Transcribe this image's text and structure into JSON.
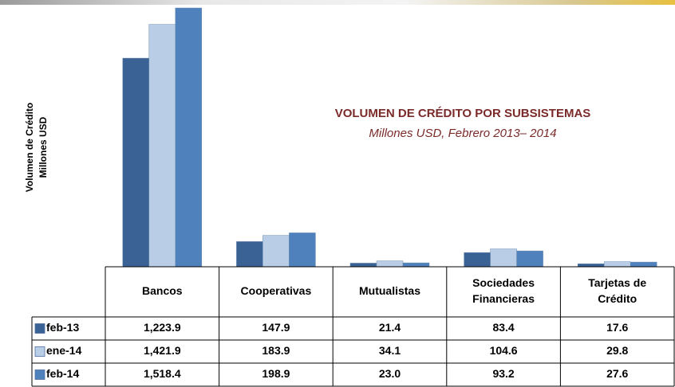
{
  "chart_data": {
    "type": "bar",
    "title": "VOLUMEN DE CRÉDITO POR SUBSISTEMAS",
    "subtitle": "Millones USD, Febrero 2013– 2014",
    "y_label": [
      "Volumen de Crédito",
      "Millones USD"
    ],
    "categories": [
      "Bancos",
      "Cooperativas",
      "Mutualistas",
      [
        "Sociedades",
        "Financieras"
      ],
      [
        "Tarjetas de",
        "Crédito"
      ]
    ],
    "series": [
      {
        "name": "feb-13",
        "color": "#3a6295",
        "values": [
          1223.9,
          147.9,
          21.4,
          83.4,
          17.6
        ],
        "value_labels": [
          "1,223.9",
          "147.9",
          "21.4",
          "83.4",
          "17.6"
        ]
      },
      {
        "name": "ene-14",
        "color": "#b9cde6",
        "values": [
          1421.9,
          183.9,
          34.1,
          104.6,
          29.8
        ],
        "value_labels": [
          "1,421.9",
          "183.9",
          "34.1",
          "104.6",
          "29.8"
        ]
      },
      {
        "name": "feb-14",
        "color": "#4f81bd",
        "values": [
          1518.4,
          198.9,
          23.0,
          93.2,
          27.6
        ],
        "value_labels": [
          "1,518.4",
          "198.9",
          "23.0",
          "93.2",
          "27.6"
        ]
      }
    ]
  }
}
